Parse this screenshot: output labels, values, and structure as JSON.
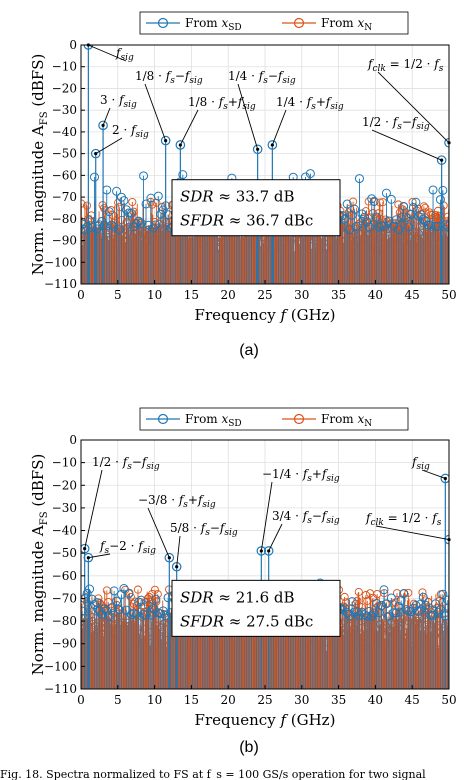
{
  "chart_data": [
    {
      "type": "stem",
      "panel_label": "(a)",
      "xlabel": "Frequency f (GHz)",
      "ylabel": "Norm. magnitude A_FS (dBFS)",
      "xlim": [
        0,
        50
      ],
      "ylim": [
        -110,
        0
      ],
      "xticks": [
        0,
        5,
        10,
        15,
        20,
        25,
        30,
        35,
        40,
        45,
        50
      ],
      "yticks": [
        0,
        -10,
        -20,
        -30,
        -40,
        -50,
        -60,
        -70,
        -80,
        -90,
        -100,
        -110
      ],
      "grid": true,
      "legend": {
        "placement": "top",
        "entries": [
          "From x_SD",
          "From x_N"
        ]
      },
      "series": [
        {
          "name": "From x_SD",
          "color": "#1f77b4",
          "spurs": [
            {
              "x": 1,
              "y": 0
            },
            {
              "x": 2,
              "y": -50
            },
            {
              "x": 3,
              "y": -37
            },
            {
              "x": 11.5,
              "y": -44
            },
            {
              "x": 13.5,
              "y": -46
            },
            {
              "x": 24,
              "y": -48
            },
            {
              "x": 26,
              "y": -46
            },
            {
              "x": 49,
              "y": -53
            },
            {
              "x": 50,
              "y": -45
            }
          ],
          "floor": [
            -85,
            -55
          ]
        },
        {
          "name": "From x_N",
          "color": "#d95319",
          "floor": [
            -110,
            -72
          ]
        }
      ],
      "annotations": [
        {
          "text": "f_sig",
          "x": 1,
          "y": 0
        },
        {
          "text": "3·f_sig",
          "x": 3,
          "y": -37
        },
        {
          "text": "2·f_sig",
          "x": 2,
          "y": -50
        },
        {
          "text": "1/8·f_s−f_sig",
          "x": 11.5,
          "y": -44
        },
        {
          "text": "1/8·f_s+f_sig",
          "x": 13.5,
          "y": -46
        },
        {
          "text": "1/4·f_s−f_sig",
          "x": 24,
          "y": -48
        },
        {
          "text": "1/4·f_s+f_sig",
          "x": 26,
          "y": -46
        },
        {
          "text": "f_clk = 1/2·f_s",
          "x": 50,
          "y": -45
        },
        {
          "text": "1/2·f_s−f_sig",
          "x": 49,
          "y": -53
        }
      ],
      "metrics": [
        {
          "name": "SDR",
          "value": "33.7 dB"
        },
        {
          "name": "SFDR",
          "value": "36.7 dBc"
        }
      ]
    },
    {
      "type": "stem",
      "panel_label": "(b)",
      "xlabel": "Frequency f (GHz)",
      "ylabel": "Norm. magnitude A_FS (dBFS)",
      "xlim": [
        0,
        50
      ],
      "ylim": [
        -110,
        0
      ],
      "xticks": [
        0,
        5,
        10,
        15,
        20,
        25,
        30,
        35,
        40,
        45,
        50
      ],
      "yticks": [
        0,
        -10,
        -20,
        -30,
        -40,
        -50,
        -60,
        -70,
        -80,
        -90,
        -100,
        -110
      ],
      "grid": true,
      "legend": {
        "placement": "top",
        "entries": [
          "From x_SD",
          "From x_N"
        ]
      },
      "series": [
        {
          "name": "From x_SD",
          "color": "#1f77b4",
          "spurs": [
            {
              "x": 0.5,
              "y": -48
            },
            {
              "x": 1,
              "y": -52
            },
            {
              "x": 12,
              "y": -52
            },
            {
              "x": 13,
              "y": -56
            },
            {
              "x": 24.5,
              "y": -49
            },
            {
              "x": 25.5,
              "y": -49
            },
            {
              "x": 49.5,
              "y": -17
            },
            {
              "x": 50,
              "y": -44
            }
          ],
          "floor": [
            -78,
            -62
          ]
        },
        {
          "name": "From x_N",
          "color": "#d95319",
          "floor": [
            -110,
            -66
          ]
        }
      ],
      "annotations": [
        {
          "text": "1/2·f_s−f_sig",
          "x": 0.5,
          "y": -48
        },
        {
          "text": "f_s−2·f_sig",
          "x": 1,
          "y": -52
        },
        {
          "text": "−3/8·f_s+f_sig",
          "x": 12,
          "y": -52
        },
        {
          "text": "5/8·f_s−f_sig",
          "x": 13,
          "y": -56
        },
        {
          "text": "−1/4·f_s+f_sig",
          "x": 24.5,
          "y": -49
        },
        {
          "text": "3/4·f_s−f_sig",
          "x": 25.5,
          "y": -49
        },
        {
          "text": "f_sig",
          "x": 49.5,
          "y": -17
        },
        {
          "text": "f_clk = 1/2·f_s",
          "x": 50,
          "y": -44
        }
      ],
      "metrics": [
        {
          "name": "SDR",
          "value": "21.6 dB"
        },
        {
          "name": "SFDR",
          "value": "27.5 dBc"
        }
      ]
    }
  ],
  "labels": {
    "legend_sd": "From x",
    "legend_sd_sub": "SD",
    "legend_n": "From x",
    "legend_n_sub": "N",
    "xlabel": "Frequency f (GHz)",
    "ylabel_main": "Norm. magnitude A",
    "ylabel_sub": "FS",
    "ylabel_tail": " (dBFS)",
    "panel_a": "(a)",
    "panel_b": "(b)",
    "caption": "Fig. 18.   Spectra normalized to FS at f_s = 100 GS/s operation for two signal"
  },
  "colors": {
    "blue": "#1f77b4",
    "orange": "#d95319",
    "grid": "#e0e0e0"
  }
}
